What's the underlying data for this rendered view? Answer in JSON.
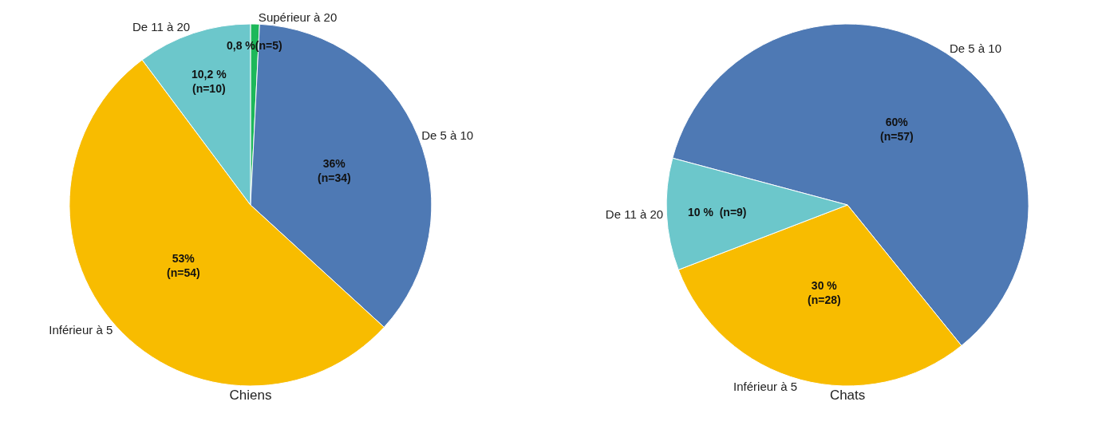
{
  "chart_data": [
    {
      "type": "pie",
      "title": "Chiens",
      "categories": [
        "Supérieur à 20",
        "De 5 à 10",
        "Inférieur à 5",
        "De 11 à 20"
      ],
      "values": [
        0.8,
        36,
        53,
        10.2
      ],
      "colors": [
        "#1db85a",
        "#4e79b4",
        "#f8bc00",
        "#6cc7cb"
      ],
      "value_labels": [
        "0,8 %(n=5)",
        "36%\n(n=34)",
        "53%\n(n=54)",
        "10,2 %\n(n=10)"
      ],
      "legend": false
    },
    {
      "type": "pie",
      "title": "Chats",
      "categories": [
        "De 5 à 10",
        "Inférieur à 5",
        "De 11 à 20"
      ],
      "values": [
        60,
        30,
        10
      ],
      "colors": [
        "#4e79b4",
        "#f8bc00",
        "#6cc7cb"
      ],
      "value_labels": [
        "60%\n(n=57)",
        "30 %\n(n=28)",
        "10 %  (n=9)"
      ],
      "legend": false
    }
  ]
}
